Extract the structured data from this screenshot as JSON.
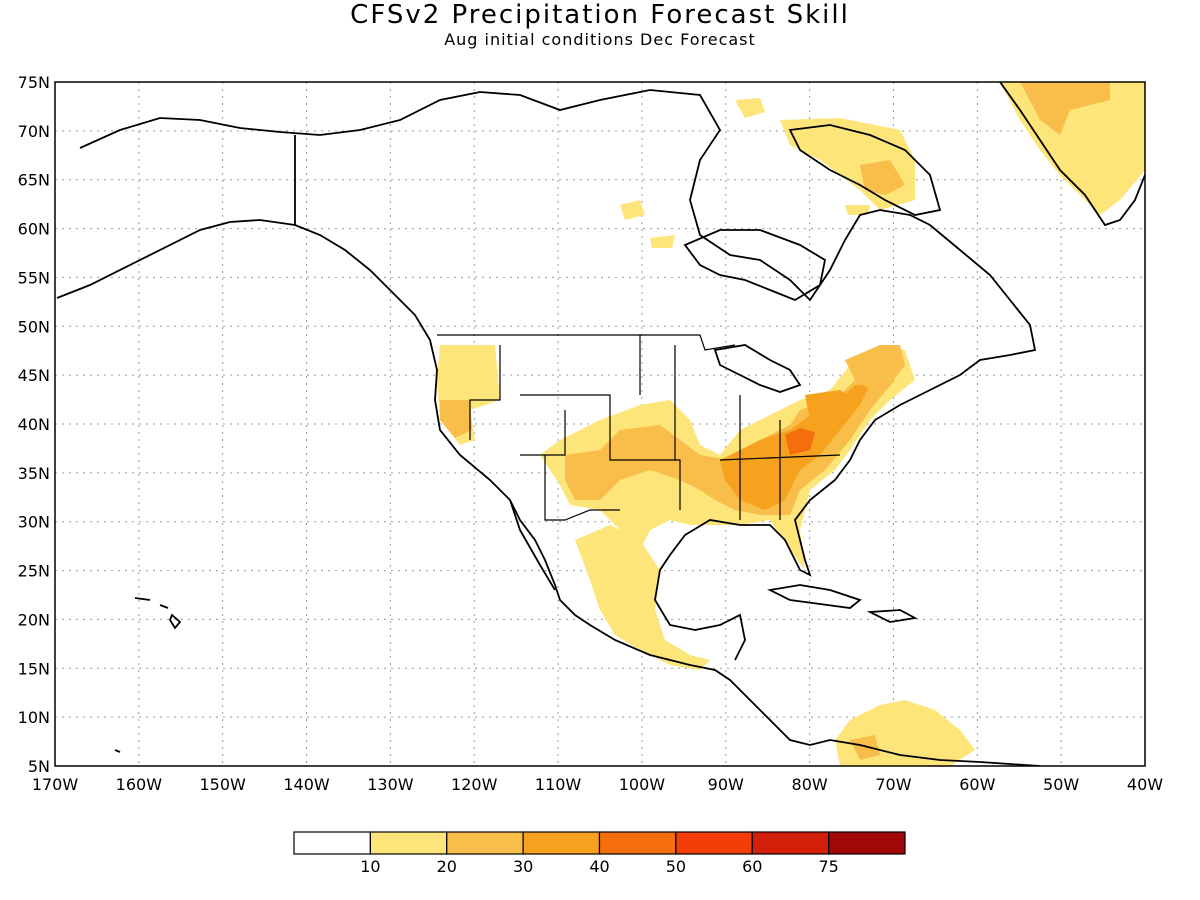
{
  "header": {
    "title": "CFSv2 Precipitation Forecast Skill",
    "subtitle": "Aug initial conditions  Dec Forecast"
  },
  "axes": {
    "lat_labels": [
      "75N",
      "70N",
      "65N",
      "60N",
      "55N",
      "50N",
      "45N",
      "40N",
      "35N",
      "30N",
      "25N",
      "20N",
      "15N",
      "10N",
      "5N"
    ],
    "lon_labels": [
      "170W",
      "160W",
      "150W",
      "140W",
      "130W",
      "120W",
      "110W",
      "100W",
      "90W",
      "80W",
      "70W",
      "60W",
      "50W",
      "40W"
    ]
  },
  "colorbar": {
    "labels": [
      "10",
      "20",
      "30",
      "40",
      "50",
      "60",
      "75"
    ],
    "colors": [
      "#ffffff",
      "#fde57a",
      "#f9bd4a",
      "#f7a21f",
      "#f56e0d",
      "#f43e0a",
      "#d41f0a",
      "#a10808"
    ]
  },
  "map": {
    "land_outline_color": "#000000",
    "gridline_color": "#999999",
    "skill_regions": [
      {
        "region": "southern great plains",
        "level": "20-30"
      },
      {
        "region": "southeast US",
        "level": "30-40"
      },
      {
        "region": "appalachians",
        "level": "40-50"
      },
      {
        "region": "northeast US",
        "level": "30-40"
      },
      {
        "region": "mexico",
        "level": "10-20"
      },
      {
        "region": "pacific northwest",
        "level": "10-20"
      },
      {
        "region": "greenland",
        "level": "10-20"
      },
      {
        "region": "baffin island",
        "level": "20-30"
      },
      {
        "region": "northern south america",
        "level": "10-20"
      }
    ]
  }
}
